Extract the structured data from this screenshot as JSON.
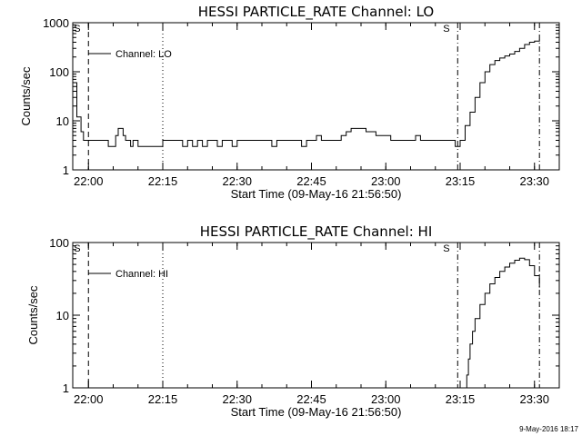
{
  "chart_data": [
    {
      "type": "line",
      "title": "HESSI PARTICLE_RATE Channel: LO",
      "xlabel": "Start Time (09-May-16 21:56:50)",
      "ylabel": "Counts/sec",
      "y_scale": "log",
      "ylim": [
        1,
        1000
      ],
      "xlim": [
        "21:56:50",
        "23:35:00"
      ],
      "x_tick_labels": [
        "22:00",
        "22:15",
        "22:30",
        "22:45",
        "23:00",
        "23:15",
        "23:30"
      ],
      "y_tick_labels": [
        "1",
        "10",
        "100",
        "1000"
      ],
      "legend": {
        "position": "top-left",
        "entries": [
          "Channel: LO"
        ]
      },
      "markers": [
        {
          "label": "S",
          "time": "22:00:00",
          "style": "dashed"
        },
        {
          "label": "",
          "time": "22:15:00",
          "style": "dotted"
        },
        {
          "label": "S",
          "time": "23:14:30",
          "style": "dash-dot"
        },
        {
          "label": "",
          "time": "23:31:00",
          "style": "dash-dot"
        }
      ],
      "series": [
        {
          "name": "Channel: LO",
          "x": [
            "21:56:50",
            "21:57:40",
            "21:58:30",
            "21:59:00",
            "22:00:00",
            "22:01:00",
            "22:02:00",
            "22:03:00",
            "22:04:00",
            "22:05:00",
            "22:05:30",
            "22:06:00",
            "22:07:00",
            "22:07:30",
            "22:08:00",
            "22:08:30",
            "22:09:00",
            "22:10:00",
            "22:11:00",
            "22:12:00",
            "22:13:00",
            "22:14:00",
            "22:15:00",
            "22:16:00",
            "22:17:00",
            "22:18:00",
            "22:19:00",
            "22:20:00",
            "22:21:00",
            "22:22:00",
            "22:23:00",
            "22:24:00",
            "22:25:00",
            "22:26:00",
            "22:27:00",
            "22:28:00",
            "22:29:00",
            "22:30:00",
            "22:31:00",
            "22:32:00",
            "22:33:00",
            "22:34:00",
            "22:35:00",
            "22:36:00",
            "22:37:00",
            "22:38:00",
            "22:39:00",
            "22:40:00",
            "22:41:00",
            "22:42:00",
            "22:43:00",
            "22:44:00",
            "22:45:00",
            "22:46:00",
            "22:47:00",
            "22:48:00",
            "22:49:00",
            "22:50:00",
            "22:51:00",
            "22:52:00",
            "22:53:00",
            "22:54:00",
            "22:55:00",
            "22:56:00",
            "22:57:00",
            "22:58:00",
            "22:59:00",
            "23:00:00",
            "23:01:00",
            "23:02:00",
            "23:03:00",
            "23:04:00",
            "23:05:00",
            "23:06:00",
            "23:07:00",
            "23:08:00",
            "23:09:00",
            "23:10:00",
            "23:11:00",
            "23:12:00",
            "23:13:00",
            "23:14:00",
            "23:15:00",
            "23:16:00",
            "23:17:00",
            "23:18:00",
            "23:19:00",
            "23:20:00",
            "23:21:00",
            "23:22:00",
            "23:23:00",
            "23:24:00",
            "23:25:00",
            "23:26:00",
            "23:27:00",
            "23:28:00",
            "23:29:00",
            "23:30:00",
            "23:31:00"
          ],
          "values": [
            60,
            12,
            6,
            4,
            4,
            4,
            4,
            4,
            3,
            3,
            5,
            7,
            5,
            4,
            4,
            3,
            4,
            3,
            3,
            3,
            3,
            3,
            4,
            4,
            4,
            4,
            3,
            4,
            3,
            4,
            3,
            4,
            4,
            3,
            4,
            4,
            3,
            4,
            4,
            4,
            4,
            4,
            4,
            4,
            3,
            4,
            4,
            4,
            4,
            4,
            3,
            4,
            4,
            5,
            4,
            4,
            4,
            4,
            5,
            6,
            7,
            7,
            7,
            6,
            6,
            5,
            5,
            5,
            4,
            4,
            4,
            4,
            4,
            5,
            4,
            4,
            4,
            4,
            4,
            4,
            4,
            3,
            4,
            8,
            15,
            30,
            60,
            100,
            140,
            170,
            190,
            210,
            230,
            260,
            300,
            360,
            400,
            420,
            450
          ]
        }
      ]
    },
    {
      "type": "line",
      "title": "HESSI PARTICLE_RATE Channel: HI",
      "xlabel": "Start Time (09-May-16 21:56:50)",
      "ylabel": "Counts/sec",
      "y_scale": "log",
      "ylim": [
        1,
        100
      ],
      "xlim": [
        "21:56:50",
        "23:35:00"
      ],
      "x_tick_labels": [
        "22:00",
        "22:15",
        "22:30",
        "22:45",
        "23:00",
        "23:15",
        "23:30"
      ],
      "y_tick_labels": [
        "1",
        "10",
        "100"
      ],
      "legend": {
        "position": "top-left",
        "entries": [
          "Channel: HI"
        ]
      },
      "markers": [
        {
          "label": "S",
          "time": "22:00:00",
          "style": "dashed"
        },
        {
          "label": "",
          "time": "22:15:00",
          "style": "dotted"
        },
        {
          "label": "S",
          "time": "23:14:30",
          "style": "dash-dot"
        },
        {
          "label": "",
          "time": "23:31:00",
          "style": "dash-dot"
        }
      ],
      "series": [
        {
          "name": "Channel: HI",
          "x": [
            "23:16:00",
            "23:16:20",
            "23:16:40",
            "23:17:00",
            "23:17:30",
            "23:18:00",
            "23:19:00",
            "23:20:00",
            "23:21:00",
            "23:22:00",
            "23:23:00",
            "23:24:00",
            "23:25:00",
            "23:26:00",
            "23:27:00",
            "23:28:00",
            "23:29:00",
            "23:30:00",
            "23:31:00"
          ],
          "values": [
            1,
            1.5,
            2.5,
            4,
            6,
            9,
            14,
            20,
            27,
            33,
            40,
            46,
            52,
            57,
            61,
            58,
            48,
            35,
            24
          ]
        }
      ]
    }
  ],
  "footer": {
    "timestamp": "9-May-2016 18:17"
  }
}
